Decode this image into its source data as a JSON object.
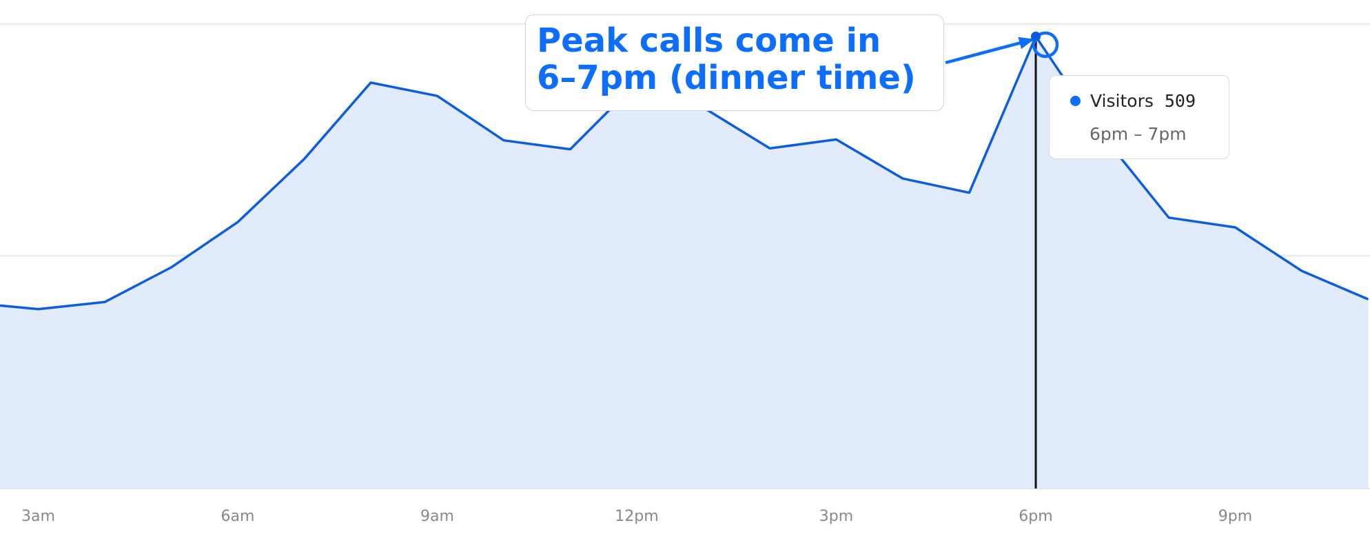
{
  "chart_data": {
    "type": "area",
    "x": [
      "2am",
      "3am",
      "4am",
      "5am",
      "6am",
      "7am",
      "8am",
      "9am",
      "10am",
      "11am",
      "12pm",
      "1pm",
      "2pm",
      "3pm",
      "4pm",
      "5pm",
      "6pm",
      "7pm",
      "8pm",
      "9pm",
      "10pm",
      "11pm"
    ],
    "values": [
      209,
      202,
      210,
      249,
      300,
      371,
      457,
      442,
      392,
      382,
      457,
      429,
      383,
      393,
      349,
      333,
      509,
      398,
      305,
      294,
      245,
      213
    ],
    "x_tick_labels": [
      "3am",
      "6am",
      "9am",
      "12pm",
      "3pm",
      "6pm",
      "9pm"
    ],
    "x_tick_positions": [
      "3am",
      "6am",
      "9am",
      "12pm",
      "3pm",
      "6pm",
      "9pm"
    ],
    "ylim": [
      0,
      550
    ],
    "gridlines_y": [
      262,
      523
    ],
    "grid": true,
    "series_color": "#0b5ce0",
    "fill_color": "#e1ebfb",
    "highlight": {
      "x": "6pm",
      "value": 509
    },
    "annotation": {
      "text_line1": "Peak calls come in",
      "text_line2": "6–7pm (dinner time)",
      "color": "#0d6efd"
    },
    "tooltip": {
      "series_label": "Visitors",
      "value": "509",
      "range": "6pm – 7pm",
      "dot_color": "#0d6efd"
    }
  }
}
